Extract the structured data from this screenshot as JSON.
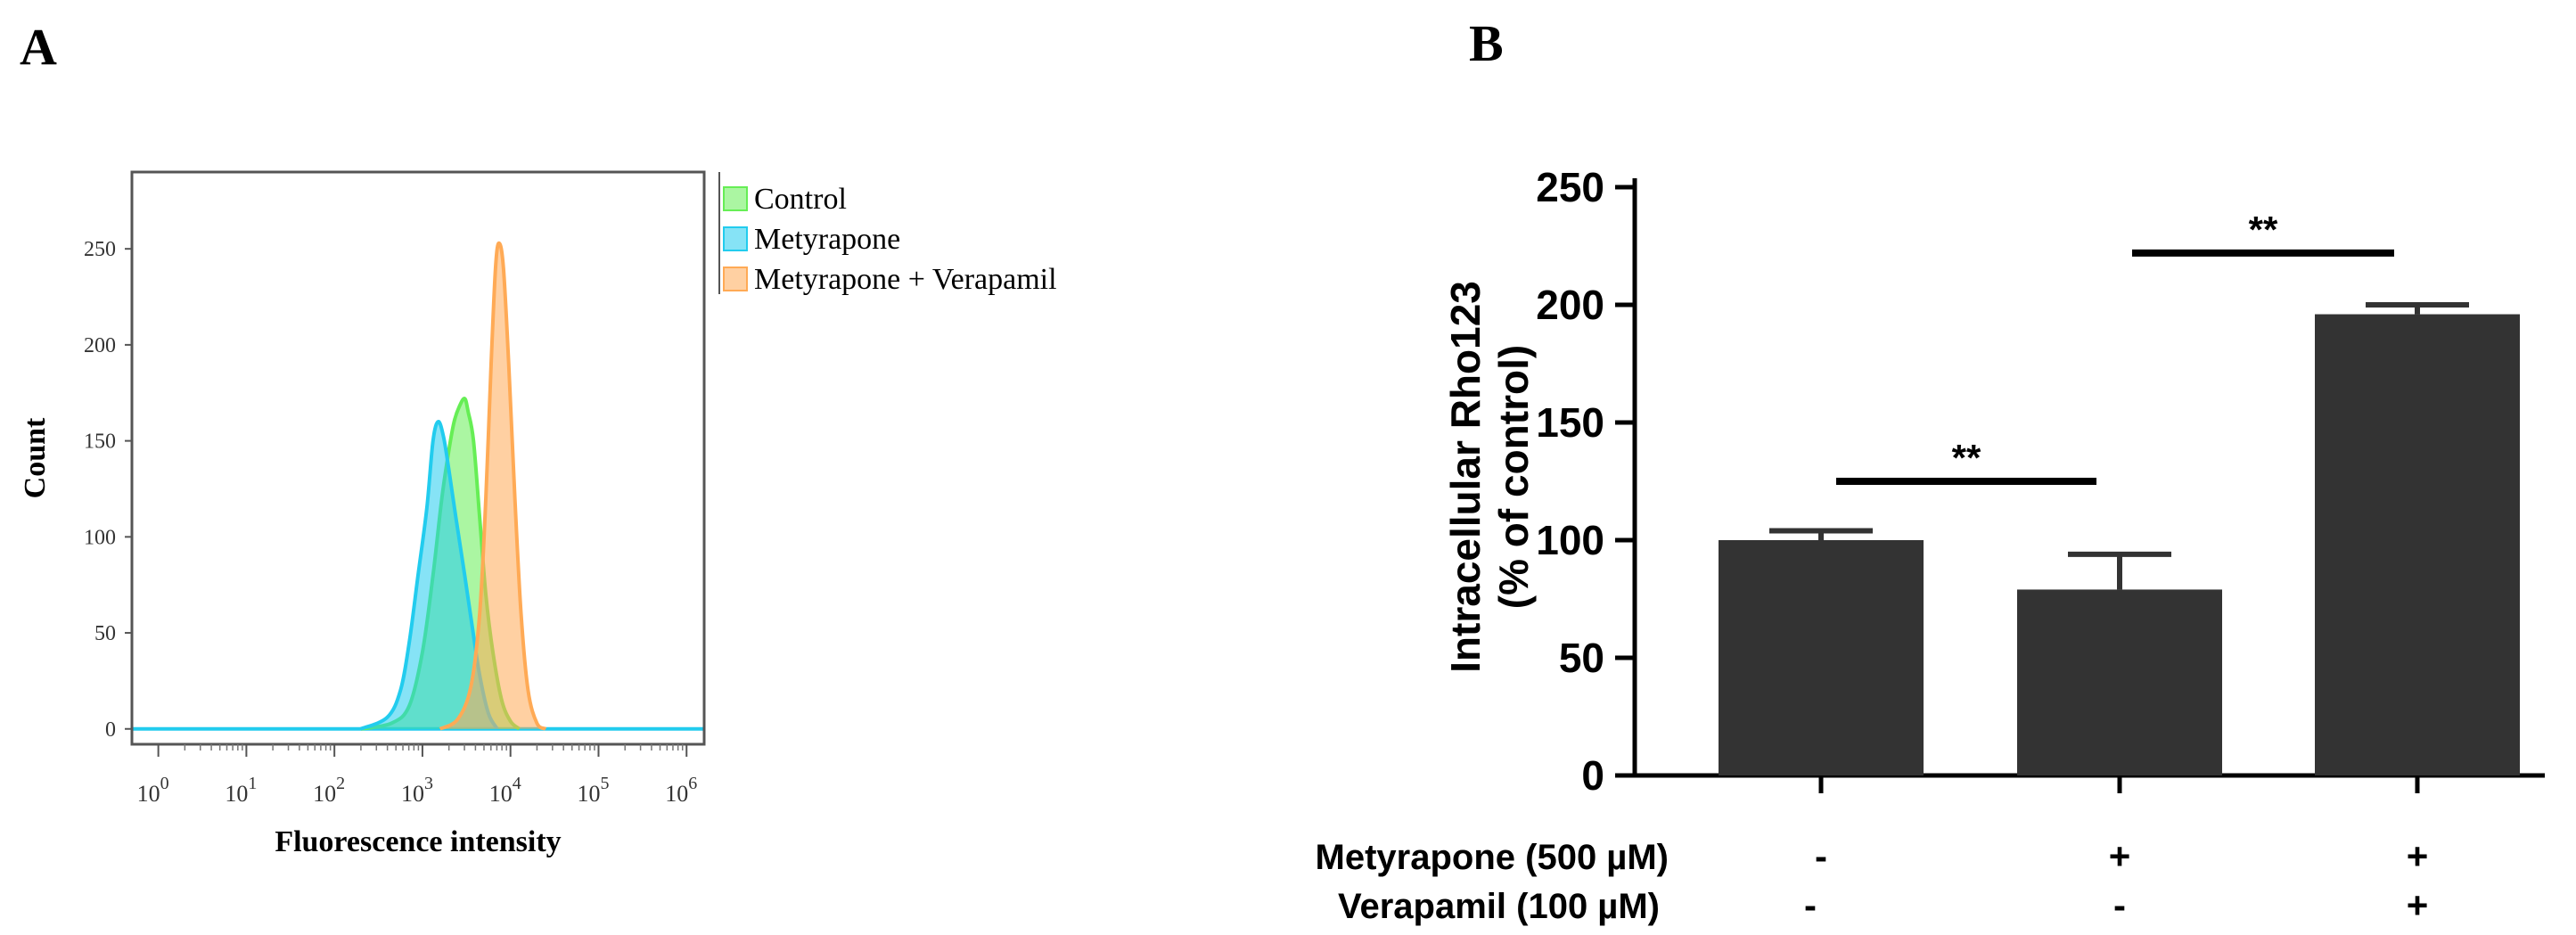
{
  "chart_data": [
    {
      "panel_label": "A",
      "type": "area",
      "title": "",
      "xlabel": "Fluorescence intensity",
      "ylabel": "Count",
      "x_scale": "log",
      "xlim_exp": [
        -0.3,
        6.2
      ],
      "ylim": [
        -8,
        290
      ],
      "y_ticks": [
        "0",
        "50",
        "100",
        "150",
        "200",
        "250"
      ],
      "x_ticks": [
        {
          "base": "10",
          "exp": "0"
        },
        {
          "base": "10",
          "exp": "1"
        },
        {
          "base": "10",
          "exp": "2"
        },
        {
          "base": "10",
          "exp": "3"
        },
        {
          "base": "10",
          "exp": "4"
        },
        {
          "base": "10",
          "exp": "5"
        },
        {
          "base": "10",
          "exp": "6"
        }
      ],
      "legend": "top-right",
      "series": [
        {
          "name": "Control",
          "color": "#66ee55",
          "points": [
            [
              2.3,
              0
            ],
            [
              2.65,
              3
            ],
            [
              2.85,
              12
            ],
            [
              3.0,
              40
            ],
            [
              3.12,
              80
            ],
            [
              3.22,
              120
            ],
            [
              3.3,
              145
            ],
            [
              3.36,
              160
            ],
            [
              3.42,
              168
            ],
            [
              3.48,
              172
            ],
            [
              3.52,
              165
            ],
            [
              3.58,
              150
            ],
            [
              3.65,
              110
            ],
            [
              3.72,
              70
            ],
            [
              3.8,
              40
            ],
            [
              3.9,
              15
            ],
            [
              4.0,
              4
            ],
            [
              4.1,
              0
            ]
          ]
        },
        {
          "name": "Metyrapone",
          "color": "#22ccee",
          "points": [
            [
              2.3,
              0
            ],
            [
              2.6,
              6
            ],
            [
              2.75,
              20
            ],
            [
              2.85,
              45
            ],
            [
              2.95,
              80
            ],
            [
              3.05,
              115
            ],
            [
              3.12,
              150
            ],
            [
              3.18,
              160
            ],
            [
              3.24,
              152
            ],
            [
              3.3,
              135
            ],
            [
              3.38,
              110
            ],
            [
              3.48,
              80
            ],
            [
              3.56,
              55
            ],
            [
              3.65,
              28
            ],
            [
              3.75,
              8
            ],
            [
              3.85,
              0
            ]
          ]
        },
        {
          "name": "Metyrapone + Verapamil",
          "color": "#ffaa55",
          "points": [
            [
              3.2,
              0
            ],
            [
              3.4,
              5
            ],
            [
              3.55,
              22
            ],
            [
              3.65,
              60
            ],
            [
              3.72,
              120
            ],
            [
              3.78,
              190
            ],
            [
              3.83,
              240
            ],
            [
              3.87,
              253
            ],
            [
              3.92,
              240
            ],
            [
              3.98,
              190
            ],
            [
              4.05,
              120
            ],
            [
              4.12,
              60
            ],
            [
              4.2,
              20
            ],
            [
              4.3,
              3
            ],
            [
              4.4,
              0
            ]
          ]
        }
      ]
    },
    {
      "panel_label": "B",
      "type": "bar",
      "title": "",
      "ylabel_line1": "Intracellular Rho123",
      "ylabel_line2": "(% of control)",
      "ylim": [
        0,
        250
      ],
      "y_ticks": [
        "0",
        "50",
        "100",
        "150",
        "200",
        "250"
      ],
      "values": [
        100,
        79,
        196
      ],
      "errors": [
        4,
        15,
        4
      ],
      "bar_color": "#333333",
      "row_labels": [
        "Metyrapone (500 µM)",
        "Verapamil (100 µM)"
      ],
      "conditions": [
        {
          "metyrapone": "-",
          "verapamil": "-"
        },
        {
          "metyrapone": "+",
          "verapamil": "-"
        },
        {
          "metyrapone": "+",
          "verapamil": "+"
        }
      ],
      "significance": [
        {
          "from": 0,
          "to": 1,
          "label": "**",
          "y": 125
        },
        {
          "from": 1,
          "to": 2,
          "label": "**",
          "y": 222
        }
      ]
    }
  ]
}
